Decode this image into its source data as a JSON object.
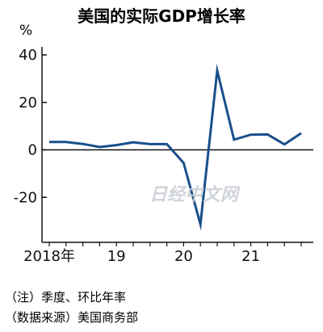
{
  "chart_data": {
    "type": "line",
    "title": "美国的实际GDP增长率",
    "y_unit": "%",
    "x": [
      "2018Q1",
      "2018Q2",
      "2018Q3",
      "2018Q4",
      "2019Q1",
      "2019Q2",
      "2019Q3",
      "2019Q4",
      "2020Q1",
      "2020Q2",
      "2020Q3",
      "2020Q4",
      "2021Q1",
      "2021Q2",
      "2021Q3",
      "2021Q4"
    ],
    "series": [
      {
        "values": [
          3.3,
          3.3,
          2.5,
          1.2,
          2.0,
          3.2,
          2.4,
          2.4,
          -5.5,
          -31.4,
          33.4,
          4.3,
          6.4,
          6.5,
          2.3,
          7.0
        ]
      }
    ],
    "x_tick_labels": [
      {
        "at": "2018Q1",
        "label": "2018年"
      },
      {
        "at": "2019Q1",
        "label": "19"
      },
      {
        "at": "2020Q1",
        "label": "20"
      },
      {
        "at": "2021Q1",
        "label": "21"
      }
    ],
    "y_ticks": [
      40,
      20,
      0,
      -20
    ],
    "y_tick_labels": [
      "40",
      "20",
      "0",
      "-20"
    ],
    "ylim": [
      -38,
      40
    ],
    "grid": false,
    "line_color": "#1a4f8b",
    "axis_color": "#111111",
    "notes": [
      "（注）季度、环比年率",
      "（数据来源）美国商务部"
    ],
    "watermark": "日经中文网"
  }
}
